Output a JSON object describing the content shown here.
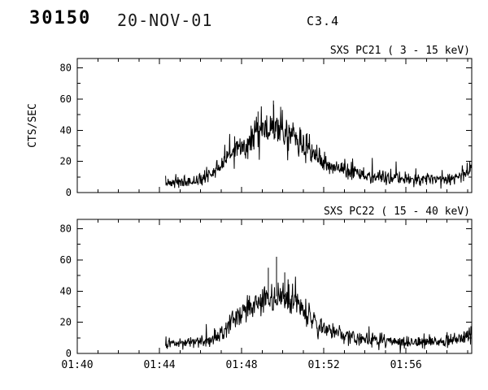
{
  "header": {
    "event_number": "30150",
    "date": "20-NOV-01",
    "flare_class": "C3.4"
  },
  "colors": {
    "background": "#ffffff",
    "foreground": "#000000"
  },
  "chart_data": [
    {
      "type": "line",
      "title": "SXS PC21 (  3 - 15 keV)",
      "ylabel": "CTS/SEC",
      "xlabel": "",
      "ylim": [
        0,
        86
      ],
      "yticks": [
        0,
        20,
        40,
        60,
        80
      ],
      "x_axis": {
        "unit": "UT time (HH:MM)",
        "xlim_minutes": [
          100,
          119.2
        ],
        "tick_minutes": [
          100,
          104,
          108,
          112,
          116
        ],
        "tick_labels": [
          "01:40",
          "01:44",
          "01:48",
          "01:52",
          "01:56"
        ],
        "minor_tick_every_min": 1,
        "show_labels": false
      },
      "series": {
        "name": "SXS-PC21",
        "units": "CTS/SEC",
        "envelope_points": [
          [
            104.3,
            6
          ],
          [
            105.0,
            7
          ],
          [
            105.6,
            7
          ],
          [
            106.1,
            9
          ],
          [
            106.6,
            13
          ],
          [
            107.0,
            17
          ],
          [
            107.4,
            23
          ],
          [
            107.8,
            28
          ],
          [
            108.2,
            32
          ],
          [
            108.7,
            36
          ],
          [
            109.2,
            39
          ],
          [
            109.7,
            42
          ],
          [
            110.1,
            41
          ],
          [
            110.5,
            36
          ],
          [
            110.9,
            31
          ],
          [
            111.4,
            26
          ],
          [
            111.9,
            21
          ],
          [
            112.4,
            17
          ],
          [
            113.0,
            14
          ],
          [
            113.7,
            12
          ],
          [
            114.5,
            10
          ],
          [
            115.5,
            9
          ],
          [
            116.5,
            8
          ],
          [
            117.5,
            9
          ],
          [
            118.5,
            10
          ],
          [
            119.2,
            14
          ]
        ],
        "spikes": [
          [
            109.55,
            59
          ],
          [
            109.9,
            55
          ],
          [
            108.8,
            52
          ]
        ]
      }
    },
    {
      "type": "line",
      "title": "SXS PC22 ( 15 - 40 keV)",
      "ylabel": "",
      "xlabel": "",
      "ylim": [
        0,
        86
      ],
      "yticks": [
        0,
        20,
        40,
        60,
        80
      ],
      "x_axis": {
        "unit": "UT time (HH:MM)",
        "xlim_minutes": [
          100,
          119.2
        ],
        "tick_minutes": [
          100,
          104,
          108,
          112,
          116
        ],
        "tick_labels": [
          "01:40",
          "01:44",
          "01:48",
          "01:52",
          "01:56"
        ],
        "minor_tick_every_min": 1,
        "show_labels": true
      },
      "series": {
        "name": "SXS-PC22",
        "units": "CTS/SEC",
        "envelope_points": [
          [
            104.3,
            6
          ],
          [
            105.0,
            6
          ],
          [
            105.6,
            7
          ],
          [
            106.2,
            8
          ],
          [
            106.7,
            10
          ],
          [
            107.1,
            14
          ],
          [
            107.5,
            20
          ],
          [
            107.9,
            26
          ],
          [
            108.3,
            30
          ],
          [
            108.8,
            33
          ],
          [
            109.3,
            35
          ],
          [
            109.8,
            37
          ],
          [
            110.2,
            36
          ],
          [
            110.6,
            32
          ],
          [
            111.0,
            27
          ],
          [
            111.5,
            22
          ],
          [
            112.0,
            17
          ],
          [
            112.5,
            14
          ],
          [
            113.1,
            11
          ],
          [
            114.0,
            9
          ],
          [
            115.0,
            8
          ],
          [
            116.0,
            7
          ],
          [
            117.0,
            7
          ],
          [
            118.0,
            8
          ],
          [
            119.0,
            11
          ],
          [
            119.2,
            14
          ]
        ],
        "spikes": [
          [
            109.7,
            62
          ],
          [
            109.3,
            55
          ],
          [
            110.1,
            52
          ]
        ]
      }
    }
  ]
}
